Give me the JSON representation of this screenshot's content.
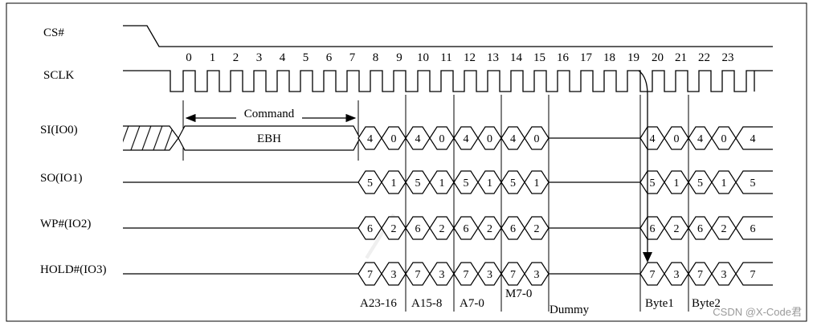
{
  "signals": [
    {
      "id": "cs",
      "label": "CS#"
    },
    {
      "id": "sclk",
      "label": "SCLK"
    },
    {
      "id": "io0",
      "label": "SI(IO0)"
    },
    {
      "id": "io1",
      "label": "SO(IO1)"
    },
    {
      "id": "io2",
      "label": "WP#(IO2)"
    },
    {
      "id": "io3",
      "label": "HOLD#(IO3)"
    }
  ],
  "clock_numbers": [
    "0",
    "1",
    "2",
    "3",
    "4",
    "5",
    "6",
    "7",
    "8",
    "9",
    "10",
    "11",
    "12",
    "13",
    "14",
    "15",
    "16",
    "17",
    "18",
    "19",
    "20",
    "21",
    "22",
    "23"
  ],
  "command": {
    "label": "Command",
    "value": "EBH"
  },
  "lane_bits": {
    "io0": [
      "4",
      "0"
    ],
    "io1": [
      "5",
      "1"
    ],
    "io2": [
      "6",
      "2"
    ],
    "io3": [
      "7",
      "3"
    ]
  },
  "lane_trailing": {
    "io0": "4",
    "io1": "5",
    "io2": "6",
    "io3": "7"
  },
  "phases": [
    "A23-16",
    "A15-8",
    "A7-0",
    "M7-0",
    "Dummy",
    "Byte1",
    "Byte2"
  ],
  "watermark": "CSDN @X-Code君"
}
